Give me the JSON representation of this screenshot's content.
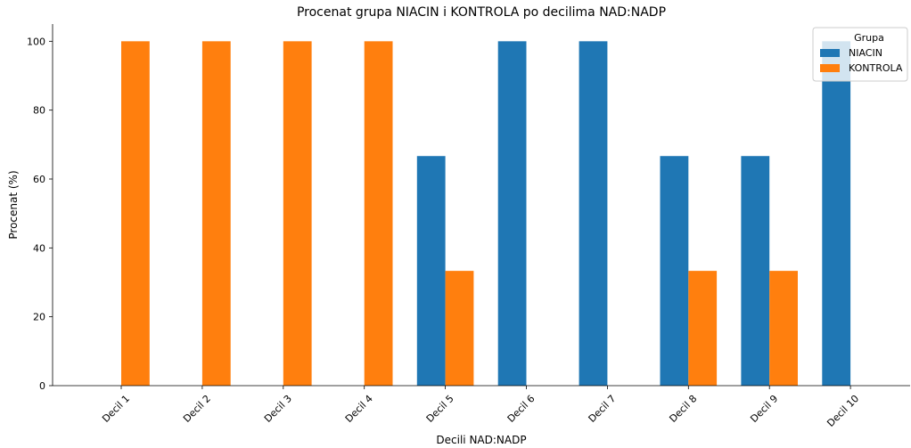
{
  "chart_data": {
    "type": "bar",
    "title": "Procenat grupa NIACIN i KONTROLA po decilima NAD:NADP",
    "xlabel": "Decili NAD:NADP",
    "ylabel": "Procenat (%)",
    "ylim": [
      0,
      105
    ],
    "yticks": [
      0,
      20,
      40,
      60,
      80,
      100
    ],
    "categories": [
      "Decil 1",
      "Decil 2",
      "Decil 3",
      "Decil 4",
      "Decil 5",
      "Decil 6",
      "Decil 7",
      "Decil 8",
      "Decil 9",
      "Decil 10"
    ],
    "series": [
      {
        "name": "NIACIN",
        "color": "#1f77b4",
        "values": [
          0,
          0,
          0,
          0,
          66.67,
          100,
          100,
          66.67,
          66.67,
          100
        ]
      },
      {
        "name": "KONTROLA",
        "color": "#ff7f0e",
        "values": [
          100,
          100,
          100,
          100,
          33.33,
          0,
          0,
          33.33,
          33.33,
          0
        ]
      }
    ],
    "legend": {
      "title": "Grupa",
      "position": "top-right"
    },
    "grid": false
  }
}
